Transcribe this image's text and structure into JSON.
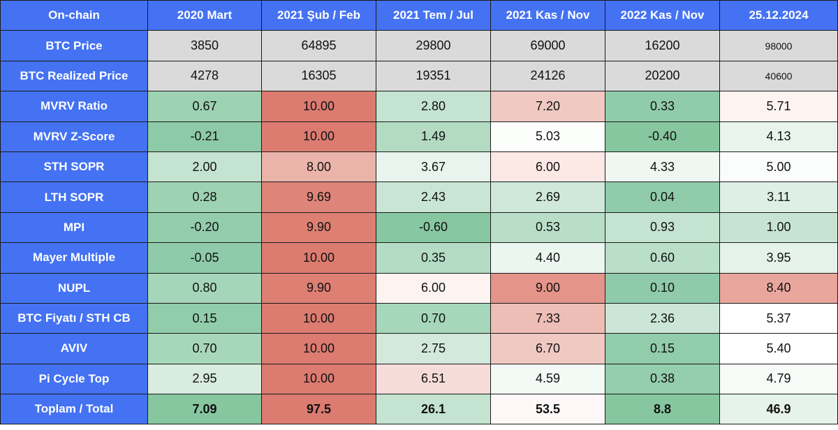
{
  "table": {
    "header": [
      "On-chain",
      "2020 Mart",
      "2021 Şub / Feb",
      "2021 Tem / Jul",
      "2021 Kas / Nov",
      "2022 Kas / Nov",
      "25.12.2024"
    ],
    "rows": [
      {
        "label": "BTC Price",
        "values": [
          "3850",
          "64895",
          "29800",
          "69000",
          "16200",
          "98000"
        ],
        "colors": [
          "#dadada",
          "#dadada",
          "#dadada",
          "#dadada",
          "#dadada",
          "#dadada"
        ]
      },
      {
        "label": "BTC Realized Price",
        "values": [
          "4278",
          "16305",
          "19351",
          "24126",
          "20200",
          "40600"
        ],
        "colors": [
          "#dadada",
          "#dadada",
          "#dadada",
          "#dadada",
          "#dadada",
          "#dadada"
        ]
      },
      {
        "label": "MVRV Ratio",
        "values": [
          "0.67",
          "10.00",
          "2.80",
          "7.20",
          "0.33",
          "5.71"
        ],
        "colors": [
          "#9dd2b2",
          "#dc7b70",
          "#c4e3d0",
          "#f0c9c3",
          "#90ccaa",
          "#fdf3f1"
        ]
      },
      {
        "label": "MVRV Z-Score",
        "values": [
          "-0.21",
          "10.00",
          "1.49",
          "5.03",
          "-0.40",
          "4.13"
        ],
        "colors": [
          "#8dcaa7",
          "#dc7b70",
          "#b2dbc2",
          "#fcfefc",
          "#86c7a0",
          "#e8f4ed"
        ]
      },
      {
        "label": "STH SOPR",
        "values": [
          "2.00",
          "8.00",
          "3.67",
          "6.00",
          "4.33",
          "5.00"
        ],
        "colors": [
          "#c4e3d0",
          "#ebb4ab",
          "#e8f4ed",
          "#fce9e6",
          "#eef7f1",
          "#fafdfb"
        ]
      },
      {
        "label": "LTH SOPR",
        "values": [
          "0.28",
          "9.69",
          "2.43",
          "2.69",
          "0.04",
          "3.11"
        ],
        "colors": [
          "#9dd2b2",
          "#de8479",
          "#c9e5d4",
          "#cfe8d9",
          "#90ccaa",
          "#deefe5"
        ]
      },
      {
        "label": "MPI",
        "values": [
          "-0.20",
          "9.90",
          "-0.60",
          "0.53",
          "0.93",
          "1.00"
        ],
        "colors": [
          "#93cdac",
          "#dd7f73",
          "#87c7a1",
          "#b9dec8",
          "#c4e3d0",
          "#c7e4d2"
        ]
      },
      {
        "label": "Mayer Multiple",
        "values": [
          "-0.05",
          "10.00",
          "0.35",
          "4.40",
          "0.60",
          "3.95"
        ],
        "colors": [
          "#8fcbaa",
          "#dc7b70",
          "#b4dcc4",
          "#ecf6f0",
          "#badfc9",
          "#e4f2ea"
        ]
      },
      {
        "label": "NUPL",
        "values": [
          "0.80",
          "9.90",
          "6.00",
          "9.00",
          "0.10",
          "8.40"
        ],
        "colors": [
          "#a5d6b9",
          "#dd7f73",
          "#fdf3f1",
          "#e49489",
          "#8fcbaa",
          "#e9a69c"
        ]
      },
      {
        "label": "BTC Fiyatı / STH CB",
        "values": [
          "0.15",
          "10.00",
          "0.70",
          "7.33",
          "2.36",
          "5.37"
        ],
        "colors": [
          "#91ccab",
          "#dc7b70",
          "#a7d7ba",
          "#eebdb6",
          "#cbe6d6",
          "#ffffff"
        ]
      },
      {
        "label": "AVIV",
        "values": [
          "0.70",
          "10.00",
          "2.75",
          "6.70",
          "0.15",
          "5.40"
        ],
        "colors": [
          "#a7d7ba",
          "#dc7b70",
          "#d2e9dc",
          "#f0c9c3",
          "#91ccab",
          "#ffffff"
        ]
      },
      {
        "label": "Pi Cycle Top",
        "values": [
          "2.95",
          "10.00",
          "6.51",
          "4.59",
          "0.38",
          "4.79"
        ],
        "colors": [
          "#d8ecdf",
          "#dc7b70",
          "#f5dcd8",
          "#f3f9f5",
          "#95cead",
          "#f6fbf8"
        ]
      },
      {
        "label": "Toplam / Total",
        "values": [
          "7.09",
          "97.5",
          "26.1",
          "53.5",
          "8.8",
          "46.9"
        ],
        "colors": [
          "#86c7a0",
          "#dc7b70",
          "#c4e3d0",
          "#fdf8f7",
          "#86c7a0",
          "#e6f3ea"
        ]
      }
    ]
  }
}
